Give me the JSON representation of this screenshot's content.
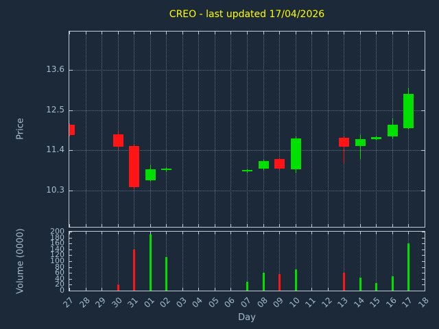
{
  "title": "CREO - last updated 17/04/2026",
  "axes": {
    "price_label": "Price",
    "volume_label": "Volume (0000)",
    "day_label": "Day"
  },
  "colors": {
    "background": "#1b2938",
    "title": "#ffff00",
    "text": "#a6bcd0",
    "border": "#c3cdd7",
    "grid": "#5c7287",
    "up": "#00e000",
    "down": "#ff1515"
  },
  "chart_data": [
    {
      "type": "candlestick",
      "title": "CREO - last updated 17/04/2026",
      "xlabel": "Day",
      "ylabel": "Price",
      "x_categories": [
        "27",
        "28",
        "29",
        "30",
        "31",
        "01",
        "02",
        "03",
        "04",
        "05",
        "06",
        "07",
        "08",
        "09",
        "10",
        "11",
        "12",
        "13",
        "14",
        "15",
        "16",
        "17",
        "18"
      ],
      "ylim": [
        9.3,
        14.65
      ],
      "yticks": [
        10.3,
        11.4,
        12.5,
        13.6
      ],
      "grid": true,
      "legend": "none",
      "candles": [
        {
          "day": "27",
          "open": 12.1,
          "high": 12.14,
          "low": 11.78,
          "close": 11.82
        },
        {
          "day": "30",
          "open": 11.84,
          "high": 11.94,
          "low": 11.4,
          "close": 11.5
        },
        {
          "day": "31",
          "open": 11.52,
          "high": 11.56,
          "low": 10.32,
          "close": 10.38
        },
        {
          "day": "01",
          "open": 10.58,
          "high": 11.0,
          "low": 10.54,
          "close": 10.88
        },
        {
          "day": "02",
          "open": 10.86,
          "high": 10.94,
          "low": 10.8,
          "close": 10.9
        },
        {
          "day": "07",
          "open": 10.83,
          "high": 10.9,
          "low": 10.78,
          "close": 10.86
        },
        {
          "day": "08",
          "open": 10.9,
          "high": 11.14,
          "low": 10.84,
          "close": 11.1
        },
        {
          "day": "09",
          "open": 11.16,
          "high": 11.2,
          "low": 10.86,
          "close": 10.9
        },
        {
          "day": "10",
          "open": 10.88,
          "high": 11.78,
          "low": 10.76,
          "close": 11.72
        },
        {
          "day": "13",
          "open": 11.74,
          "high": 11.78,
          "low": 11.04,
          "close": 11.5
        },
        {
          "day": "14",
          "open": 11.52,
          "high": 11.84,
          "low": 11.16,
          "close": 11.7
        },
        {
          "day": "15",
          "open": 11.7,
          "high": 11.8,
          "low": 11.66,
          "close": 11.76
        },
        {
          "day": "16",
          "open": 11.78,
          "high": 12.26,
          "low": 11.7,
          "close": 12.1
        },
        {
          "day": "17",
          "open": 12.0,
          "high": 13.12,
          "low": 11.96,
          "close": 12.94
        }
      ]
    },
    {
      "type": "bar",
      "xlabel": "Day",
      "ylabel": "Volume (0000)",
      "ylim": [
        0,
        200
      ],
      "yticks": [
        0,
        20,
        40,
        60,
        80,
        100,
        120,
        140,
        160,
        180,
        200
      ],
      "grid": true,
      "bars": [
        {
          "day": "30",
          "value": 22,
          "direction": "down"
        },
        {
          "day": "31",
          "value": 140,
          "direction": "down"
        },
        {
          "day": "01",
          "value": 190,
          "direction": "up"
        },
        {
          "day": "02",
          "value": 115,
          "direction": "up"
        },
        {
          "day": "07",
          "value": 30,
          "direction": "up"
        },
        {
          "day": "08",
          "value": 60,
          "direction": "up"
        },
        {
          "day": "09",
          "value": 55,
          "direction": "down"
        },
        {
          "day": "10",
          "value": 72,
          "direction": "up"
        },
        {
          "day": "13",
          "value": 60,
          "direction": "down"
        },
        {
          "day": "14",
          "value": 45,
          "direction": "up"
        },
        {
          "day": "15",
          "value": 25,
          "direction": "up"
        },
        {
          "day": "16",
          "value": 48,
          "direction": "up"
        },
        {
          "day": "17",
          "value": 160,
          "direction": "up"
        }
      ]
    }
  ]
}
